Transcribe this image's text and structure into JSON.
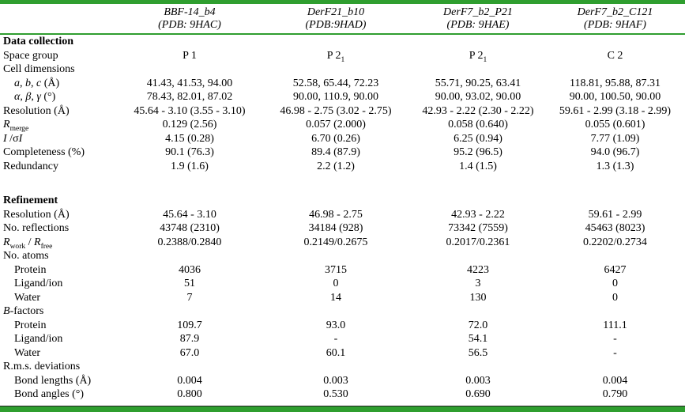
{
  "colors": {
    "border_green": "#2f9e2f"
  },
  "table": {
    "columns": [
      {
        "name": "BBF-14_b4",
        "pdb": "(PDB: 9HAC)"
      },
      {
        "name": "DerF21_b10",
        "pdb": "(PDB:9HAD)"
      },
      {
        "name": "DerF7_b2_P21",
        "pdb": "(PDB: 9HAE)"
      },
      {
        "name": "DerF7_b2_C121",
        "pdb": "(PDB: 9HAF)"
      }
    ],
    "sections": [
      {
        "title": "Data collection",
        "rows": [
          {
            "label": "Space group",
            "indent": false,
            "values": [
              "P 1",
              "P 2~1~",
              "P 2~1~",
              "C 2"
            ]
          },
          {
            "label": "Cell dimensions",
            "indent": false,
            "values": [
              "",
              "",
              "",
              ""
            ]
          },
          {
            "label": "*a*, *b*, *c* (Å)",
            "indent": true,
            "values": [
              "41.43, 41.53, 94.00",
              "52.58, 65.44, 72.23",
              "55.71, 90.25, 63.41",
              "118.81, 95.88, 87.31"
            ]
          },
          {
            "label": "*α*, *β*, *γ* (°)",
            "indent": true,
            "values": [
              "78.43, 82.01, 87.02",
              "90.00, 110.9, 90.00",
              "90.00, 93.02, 90.00",
              "90.00, 100.50, 90.00"
            ]
          },
          {
            "label": "Resolution (Å)",
            "indent": false,
            "values": [
              "45.64 - 3.10 (3.55 - 3.10)",
              "46.98 - 2.75 (3.02 - 2.75)",
              "42.93 - 2.22 (2.30 - 2.22)",
              "59.61 - 2.99 (3.18 - 2.99)"
            ]
          },
          {
            "label": "*R*~merge~",
            "indent": false,
            "values": [
              "0.129 (2.56)",
              "0.057 (2.000)",
              "0.058 (0.640)",
              "0.055 (0.601)"
            ]
          },
          {
            "label": "*I* /σ*I*",
            "indent": false,
            "values": [
              "4.15 (0.28)",
              "6.70 (0.26)",
              "6.25 (0.94)",
              "7.77 (1.09)"
            ]
          },
          {
            "label": "Completeness (%)",
            "indent": false,
            "values": [
              "90.1 (76.3)",
              "89.4 (87.9)",
              "95.2 (96.5)",
              "94.0 (96.7)"
            ]
          },
          {
            "label": "Redundancy",
            "indent": false,
            "values": [
              "1.9 (1.6)",
              "2.2 (1.2)",
              "1.4 (1.5)",
              "1.3 (1.3)"
            ]
          }
        ]
      },
      {
        "title": "Refinement",
        "rows": [
          {
            "label": "Resolution (Å)",
            "indent": false,
            "values": [
              "45.64 - 3.10",
              "46.98 - 2.75",
              "42.93 - 2.22",
              "59.61 - 2.99"
            ]
          },
          {
            "label": "No. reflections",
            "indent": false,
            "values": [
              "43748 (2310)",
              "34184 (928)",
              "73342 (7559)",
              "45463 (8023)"
            ]
          },
          {
            "label": "*R*~work~ / *R*~free~",
            "indent": false,
            "values": [
              "0.2388/0.2840",
              "0.2149/0.2675",
              "0.2017/0.2361",
              "0.2202/0.2734"
            ]
          },
          {
            "label": "No. atoms",
            "indent": false,
            "values": [
              "",
              "",
              "",
              ""
            ]
          },
          {
            "label": "Protein",
            "indent": true,
            "values": [
              "4036",
              "3715",
              "4223",
              "6427"
            ]
          },
          {
            "label": "Ligand/ion",
            "indent": true,
            "values": [
              "51",
              "0",
              "3",
              "0"
            ]
          },
          {
            "label": "Water",
            "indent": true,
            "values": [
              "7",
              "14",
              "130",
              "0"
            ]
          },
          {
            "label": "*B*-factors",
            "indent": false,
            "values": [
              "",
              "",
              "",
              ""
            ]
          },
          {
            "label": "Protein",
            "indent": true,
            "values": [
              "109.7",
              "93.0",
              "72.0",
              "111.1"
            ]
          },
          {
            "label": "Ligand/ion",
            "indent": true,
            "values": [
              "87.9",
              "-",
              "54.1",
              "-"
            ]
          },
          {
            "label": "Water",
            "indent": true,
            "values": [
              "67.0",
              "60.1",
              "56.5",
              "-"
            ]
          },
          {
            "label": "R.m.s. deviations",
            "indent": false,
            "values": [
              "",
              "",
              "",
              ""
            ]
          },
          {
            "label": "Bond lengths (Å)",
            "indent": true,
            "values": [
              "0.004",
              "0.003",
              "0.003",
              "0.004"
            ]
          },
          {
            "label": "Bond angles (°)",
            "indent": true,
            "values": [
              "0.800",
              "0.530",
              "0.690",
              "0.790"
            ]
          }
        ]
      }
    ]
  }
}
